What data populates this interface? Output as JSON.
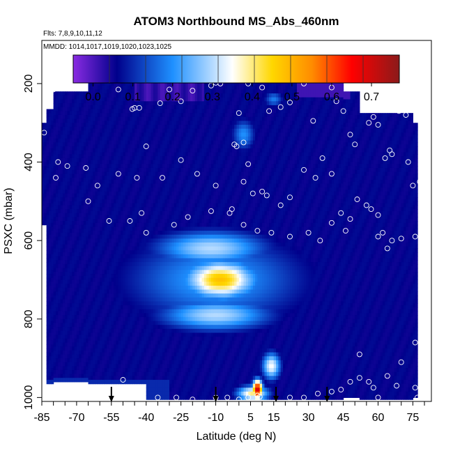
{
  "chart_data": {
    "type": "heatmap",
    "title": "ATOM3 Northbound MS_Abs_460nm",
    "flights_note": "Flts: 7,8,9,10,11,12",
    "dates_note": "MMDD: 1014,1017,1019,1020,1023,1025",
    "xlabel": "Latitude (deg N)",
    "ylabel": "PSXC (mbar)",
    "xlim": [
      -85,
      83
    ],
    "ylim": [
      1010,
      90
    ],
    "x_ticks": [
      "-85",
      "-70",
      "-55",
      "-40",
      "-25",
      "-10",
      "5",
      "15",
      "30",
      "45",
      "60",
      "75"
    ],
    "y_ticks": [
      "200",
      "400",
      "600",
      "800",
      "1000"
    ],
    "colorbar": {
      "tick_labels": [
        "0.0",
        "0.1",
        "0.2",
        "0.3",
        "0.4",
        "0.5",
        "0.6",
        "0.7"
      ],
      "range": [
        -0.05,
        0.77
      ],
      "colors": [
        "#8a2be2",
        "#00008b",
        "#1e90ff",
        "#ffffff",
        "#ffd700",
        "#ff8c00",
        "#ff0000",
        "#8b1a1a"
      ]
    },
    "columns": [
      {
        "lat_range": [
          -85,
          -83
        ],
        "p_range": [
          300,
          560
        ]
      },
      {
        "lat_range": [
          -83,
          -80
        ],
        "p_range": [
          265,
          960
        ]
      },
      {
        "lat_range": [
          -80,
          -76
        ],
        "p_range": [
          220,
          960
        ]
      },
      {
        "lat_range": [
          -76,
          -65
        ],
        "p_range": [
          220,
          960
        ]
      },
      {
        "lat_range": [
          -65,
          -40
        ],
        "p_range": [
          165,
          960
        ]
      },
      {
        "lat_range": [
          -40,
          45
        ],
        "p_range": [
          165,
          1000
        ]
      },
      {
        "lat_range": [
          45,
          52
        ],
        "p_range": [
          220,
          1000
        ]
      },
      {
        "lat_range": [
          52,
          67
        ],
        "p_range": [
          275,
          1000
        ]
      },
      {
        "lat_range": [
          67,
          75
        ],
        "p_range": [
          275,
          1000
        ]
      },
      {
        "lat_range": [
          75,
          77
        ],
        "p_range": [
          300,
          1000
        ]
      }
    ],
    "background_value": 0.06,
    "features": [
      {
        "name": "mid-troposphere plume",
        "lat": -8,
        "p": 700,
        "value": 0.48
      },
      {
        "name": "plume upper layer",
        "lat": -12,
        "p": 620,
        "value": 0.3
      },
      {
        "name": "plume lower layer",
        "lat": -10,
        "p": 790,
        "value": 0.3
      },
      {
        "name": "boundary layer max",
        "lat": 8,
        "p": 980,
        "value": 0.72
      },
      {
        "name": "boundary layer shoulder",
        "lat": 14,
        "p": 920,
        "value": 0.35
      },
      {
        "name": "upper column",
        "lat": 2,
        "p": 330,
        "value": 0.2
      },
      {
        "name": "upper-left purple",
        "lat": -30,
        "p": 190,
        "value": 0.0
      },
      {
        "name": "upper-right purple",
        "lat": 40,
        "p": 210,
        "value": 0.0
      }
    ],
    "markers_lat": [
      -55,
      -10,
      16,
      38
    ],
    "sample_points": [
      [
        -80,
        215
      ],
      [
        -73,
        210
      ],
      [
        -68,
        210
      ],
      [
        -58,
        180
      ],
      [
        -52,
        215
      ],
      [
        -46,
        265
      ],
      [
        -45,
        262
      ],
      [
        -43,
        262
      ],
      [
        -34,
        250
      ],
      [
        -30,
        215
      ],
      [
        -25,
        245
      ],
      [
        -20,
        218
      ],
      [
        -12,
        205
      ],
      [
        -10,
        198
      ],
      [
        -8,
        200
      ],
      [
        0,
        275
      ],
      [
        2,
        350
      ],
      [
        -2,
        355
      ],
      [
        -1,
        360
      ],
      [
        4,
        200
      ],
      [
        10,
        210
      ],
      [
        12,
        180
      ],
      [
        13,
        270
      ],
      [
        18,
        260
      ],
      [
        22,
        248
      ],
      [
        28,
        200
      ],
      [
        32,
        295
      ],
      [
        40,
        210
      ],
      [
        42,
        245
      ],
      [
        45,
        270
      ],
      [
        48,
        330
      ],
      [
        50,
        355
      ],
      [
        56,
        300
      ],
      [
        58,
        285
      ],
      [
        60,
        305
      ],
      [
        63,
        390
      ],
      [
        65,
        370
      ],
      [
        66,
        380
      ],
      [
        69,
        270
      ],
      [
        72,
        280
      ],
      [
        75,
        460
      ],
      [
        78,
        450
      ],
      [
        73,
        400
      ],
      [
        80,
        400
      ],
      [
        -84,
        325
      ],
      [
        -79,
        440
      ],
      [
        -78,
        400
      ],
      [
        -74,
        410
      ],
      [
        -66,
        415
      ],
      [
        -61,
        460
      ],
      [
        -52,
        430
      ],
      [
        -44,
        440
      ],
      [
        -42,
        530
      ],
      [
        -33,
        440
      ],
      [
        -25,
        395
      ],
      [
        -18,
        430
      ],
      [
        -10,
        460
      ],
      [
        2,
        450
      ],
      [
        4,
        405
      ],
      [
        6,
        480
      ],
      [
        10,
        475
      ],
      [
        12,
        485
      ],
      [
        18,
        510
      ],
      [
        22,
        490
      ],
      [
        28,
        420
      ],
      [
        33,
        440
      ],
      [
        36,
        390
      ],
      [
        40,
        430
      ],
      [
        -87,
        470
      ],
      [
        -65,
        500
      ],
      [
        -56,
        550
      ],
      [
        -47,
        550
      ],
      [
        -40,
        580
      ],
      [
        -28,
        560
      ],
      [
        -22,
        540
      ],
      [
        -12,
        525
      ],
      [
        -3,
        520
      ],
      [
        -4,
        530
      ],
      [
        2,
        560
      ],
      [
        8,
        575
      ],
      [
        14,
        580
      ],
      [
        22,
        590
      ],
      [
        30,
        580
      ],
      [
        35,
        600
      ],
      [
        40,
        555
      ],
      [
        44,
        530
      ],
      [
        46,
        575
      ],
      [
        48,
        545
      ],
      [
        51,
        495
      ],
      [
        55,
        510
      ],
      [
        57,
        520
      ],
      [
        60,
        535
      ],
      [
        60,
        590
      ],
      [
        62,
        580
      ],
      [
        64,
        620
      ],
      [
        66,
        600
      ],
      [
        70,
        595
      ],
      [
        76,
        590
      ],
      [
        -50,
        955
      ],
      [
        -42,
        1005
      ],
      [
        -35,
        1000
      ],
      [
        -27,
        1000
      ],
      [
        -20,
        1005
      ],
      [
        -10,
        1000
      ],
      [
        -5,
        1000
      ],
      [
        0,
        1005
      ],
      [
        4,
        1000
      ],
      [
        8,
        995
      ],
      [
        9,
        998
      ],
      [
        22,
        1000
      ],
      [
        28,
        1000
      ],
      [
        34,
        990
      ],
      [
        40,
        985
      ],
      [
        44,
        980
      ],
      [
        48,
        960
      ],
      [
        52,
        950
      ],
      [
        56,
        960
      ],
      [
        58,
        975
      ],
      [
        60,
        1000
      ],
      [
        64,
        945
      ],
      [
        68,
        970
      ],
      [
        76,
        975
      ],
      [
        77,
        1000
      ],
      [
        70,
        910
      ],
      [
        76,
        860
      ],
      [
        52,
        890
      ],
      [
        -86,
        950
      ],
      [
        -40,
        360
      ]
    ]
  }
}
